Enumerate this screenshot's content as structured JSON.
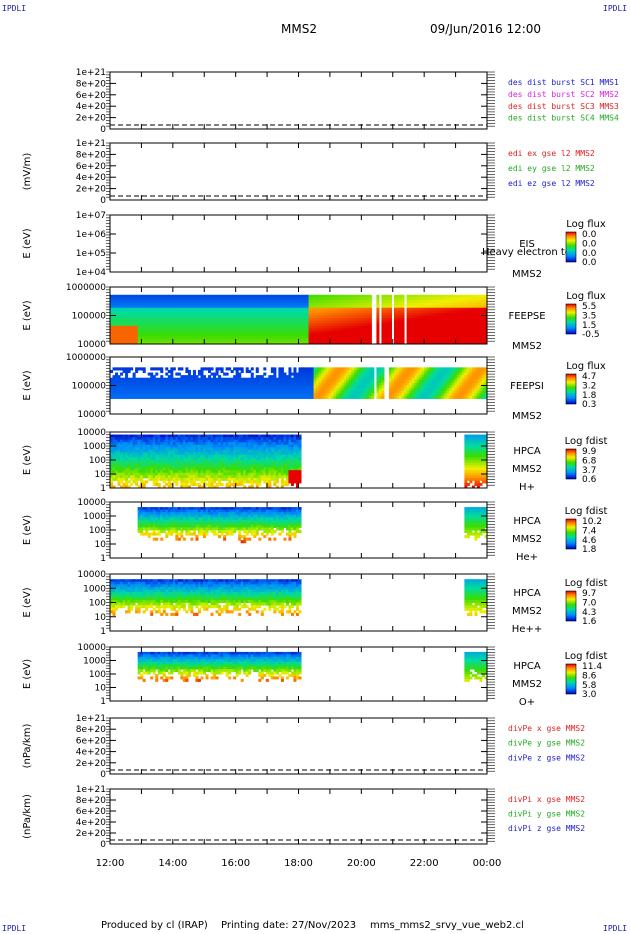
{
  "corner_tags": [
    "IPDLI",
    "IPDLI",
    "IPDLI",
    "IPDLI"
  ],
  "header": {
    "spacecraft": "MMS2",
    "date_time": "09/Jun/2016 12:00"
  },
  "footer": {
    "produced_by": "Produced by cl (IRAP)",
    "printing_date": "Printing date: 27/Nov/2023",
    "filename": "mms_mms2_srvy_vue_web2.cl"
  },
  "chart_data": {
    "type": "heatmap",
    "x_axis": {
      "range": [
        "12:00",
        "00:00"
      ],
      "tick_labels": [
        "12:00",
        "14:00",
        "16:00",
        "18:00",
        "20:00",
        "22:00",
        "00:00"
      ]
    },
    "panels": [
      {
        "id": "des-dist",
        "type": "line",
        "ylabel": "",
        "yticks": [
          "1e+21",
          "8e+20",
          "6e+20",
          "4e+20",
          "2e+20",
          "0"
        ],
        "ylim": [
          0,
          1e+21
        ],
        "dashed_zero": true,
        "legend": [
          {
            "text": "des dist burst SC1 MMS1",
            "color": "#2222cc"
          },
          {
            "text": "des dist burst SC2 MMS2",
            "color": "#dd22dd"
          },
          {
            "text": "des dist burst SC3 MMS3",
            "color": "#dd2222"
          },
          {
            "text": "des dist burst SC4 MMS4",
            "color": "#22aa22"
          }
        ]
      },
      {
        "id": "edi-e",
        "type": "line",
        "ylabel": "(mV/m)",
        "yticks": [
          "1e+21",
          "8e+20",
          "6e+20",
          "4e+20",
          "2e+20",
          "0"
        ],
        "ylim": [
          0,
          1e+21
        ],
        "dashed_zero": true,
        "legend": [
          {
            "text": "edi ex gse l2 MMS2",
            "color": "#dd2222"
          },
          {
            "text": "edi ey gse l2 MMS2",
            "color": "#22aa22"
          },
          {
            "text": "edi ez gse l2 MMS2",
            "color": "#2222cc"
          }
        ]
      },
      {
        "id": "eis",
        "type": "heatmap",
        "ylabel": "E (eV)",
        "yticks": [
          "1e+07",
          "1e+06",
          "1e+05",
          "1e+04"
        ],
        "ylim": [
          10000.0,
          10000000.0
        ],
        "log": true,
        "labels": [
          "EIS",
          "MMS2"
        ],
        "overlap_text": "Heavy electron to",
        "colorbar": {
          "title": "Log flux",
          "ticks": [
            "0.0",
            "0.0",
            "0.0",
            "0.0"
          ]
        },
        "coverage": []
      },
      {
        "id": "feeps-e",
        "type": "heatmap",
        "ylabel": "E (eV)",
        "yticks": [
          "1000000",
          "100000",
          "10000"
        ],
        "ylim": [
          10000.0,
          1000000.0
        ],
        "log": true,
        "labels": [
          "FEEPSE",
          "MMS2"
        ],
        "colorbar": {
          "title": "Log flux",
          "ticks": [
            "5.5",
            "3.5",
            "1.5",
            "-0.5"
          ]
        },
        "coverage": [
          [
            12.0,
            24.0
          ]
        ],
        "gaps": [
          [
            20.05,
            20.1
          ],
          [
            20.35,
            20.45
          ],
          [
            20.55,
            20.65
          ],
          [
            21.0,
            21.05
          ],
          [
            21.4,
            21.45
          ]
        ]
      },
      {
        "id": "feeps-i",
        "type": "heatmap",
        "ylabel": "E (eV)",
        "yticks": [
          "1000000",
          "100000",
          "10000"
        ],
        "ylim": [
          10000.0,
          1000000.0
        ],
        "log": true,
        "labels": [
          "FEEPSI",
          "MMS2"
        ],
        "colorbar": {
          "title": "Log flux",
          "ticks": [
            "4.7",
            "3.2",
            "1.8",
            "0.3"
          ]
        },
        "coverage": [
          [
            12.0,
            24.0
          ]
        ],
        "gaps": [
          [
            20.4,
            20.5
          ],
          [
            20.75,
            20.85
          ]
        ]
      },
      {
        "id": "hpca-h",
        "type": "heatmap",
        "ylabel": "E (eV)",
        "yticks": [
          "10000",
          "1000",
          "100",
          "10",
          "1"
        ],
        "ylim": [
          1,
          10000
        ],
        "log": true,
        "labels": [
          "HPCA",
          "MMS2",
          "H+"
        ],
        "colorbar": {
          "title": "Log fdist",
          "ticks": [
            "9.9",
            "6.8",
            "3.7",
            "0.6"
          ]
        },
        "coverage": [
          [
            12.0,
            18.05
          ],
          [
            23.25,
            24.0
          ]
        ]
      },
      {
        "id": "hpca-he",
        "type": "heatmap",
        "ylabel": "E (eV)",
        "yticks": [
          "10000",
          "1000",
          "100",
          "10",
          "1"
        ],
        "ylim": [
          1,
          10000
        ],
        "log": true,
        "labels": [
          "HPCA",
          "MMS2",
          "He+"
        ],
        "colorbar": {
          "title": "Log fdist",
          "ticks": [
            "10.2",
            "7.4",
            "4.6",
            "1.8"
          ]
        },
        "coverage": [
          [
            12.85,
            18.05
          ],
          [
            23.25,
            24.0
          ]
        ]
      },
      {
        "id": "hpca-hepp",
        "type": "heatmap",
        "ylabel": "E (eV)",
        "yticks": [
          "10000",
          "1000",
          "100",
          "10",
          "1"
        ],
        "ylim": [
          1,
          10000
        ],
        "log": true,
        "labels": [
          "HPCA",
          "MMS2",
          "He++"
        ],
        "colorbar": {
          "title": "Log fdist",
          "ticks": [
            "9.7",
            "7.0",
            "4.3",
            "1.6"
          ]
        },
        "coverage": [
          [
            12.0,
            18.05
          ],
          [
            23.25,
            24.0
          ]
        ]
      },
      {
        "id": "hpca-o",
        "type": "heatmap",
        "ylabel": "E (eV)",
        "yticks": [
          "10000",
          "1000",
          "100",
          "10",
          "1"
        ],
        "ylim": [
          1,
          10000
        ],
        "log": true,
        "labels": [
          "HPCA",
          "MMS2",
          "O+"
        ],
        "colorbar": {
          "title": "Log fdist",
          "ticks": [
            "11.4",
            "8.6",
            "5.8",
            "3.0"
          ]
        },
        "coverage": [
          [
            12.85,
            18.05
          ],
          [
            23.25,
            24.0
          ]
        ]
      },
      {
        "id": "divpe",
        "type": "line",
        "ylabel": "(nPa/km)",
        "yticks": [
          "1e+21",
          "8e+20",
          "6e+20",
          "4e+20",
          "2e+20",
          "0"
        ],
        "ylim": [
          0,
          1e+21
        ],
        "dashed_zero": true,
        "legend": [
          {
            "text": "divPe x gse MMS2",
            "color": "#dd2222"
          },
          {
            "text": "divPe y gse MMS2",
            "color": "#22aa22"
          },
          {
            "text": "divPe z gse MMS2",
            "color": "#2222cc"
          }
        ]
      },
      {
        "id": "divpi",
        "type": "line",
        "ylabel": "(nPa/km)",
        "yticks": [
          "1e+21",
          "8e+20",
          "6e+20",
          "4e+20",
          "2e+20",
          "0"
        ],
        "ylim": [
          0,
          1e+21
        ],
        "dashed_zero": true,
        "legend": [
          {
            "text": "divPi x gse MMS2",
            "color": "#dd2222"
          },
          {
            "text": "divPi y gse MMS2",
            "color": "#22aa22"
          },
          {
            "text": "divPi z gse MMS2",
            "color": "#2222cc"
          }
        ]
      }
    ]
  }
}
